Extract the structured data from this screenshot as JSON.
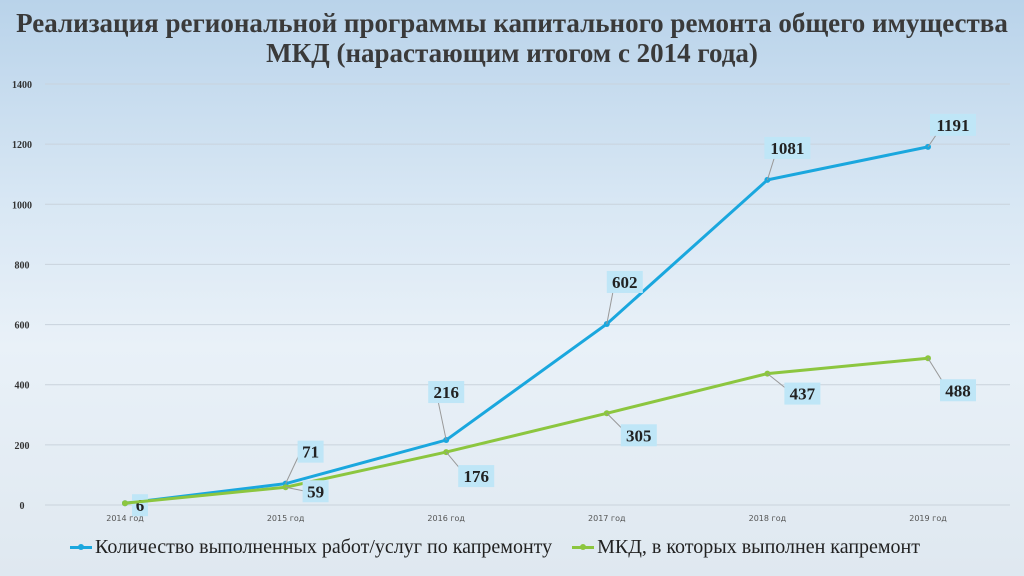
{
  "chart_data": {
    "type": "line",
    "title": "Реализация региональной программы капитального ремонта общего имущества МКД (нарастающим итогом с 2014 года)",
    "categories": [
      "2014 год",
      "2015 год",
      "2016 год",
      "2017 год",
      "2018 год",
      "2019 год"
    ],
    "ylim": [
      0,
      1400
    ],
    "yticks": [
      0,
      200,
      400,
      600,
      800,
      1000,
      1200,
      1400
    ],
    "grid": true,
    "legend": "bottom",
    "series": [
      {
        "name": "Количество выполненных работ/услуг по капремонту",
        "color": "#1aa7de",
        "values": [
          6,
          71,
          216,
          602,
          1081,
          1191
        ],
        "labels": [
          "6",
          "71",
          "216",
          "602",
          "1081",
          "1191"
        ]
      },
      {
        "name": "МКД, в которых выполнен капремонт",
        "color": "#8cc63f",
        "values": [
          6,
          59,
          176,
          305,
          437,
          488
        ],
        "labels": [
          "",
          "59",
          "176",
          "305",
          "437",
          "488"
        ]
      }
    ]
  }
}
